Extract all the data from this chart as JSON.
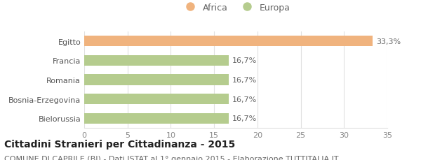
{
  "categories": [
    "Bielorussia",
    "Bosnia-Erzegovina",
    "Romania",
    "Francia",
    "Egitto"
  ],
  "values": [
    16.7,
    16.7,
    16.7,
    16.7,
    33.3
  ],
  "bar_colors": [
    "#b5cc8e",
    "#b5cc8e",
    "#b5cc8e",
    "#b5cc8e",
    "#f0b37e"
  ],
  "bar_labels": [
    "16,7%",
    "16,7%",
    "16,7%",
    "16,7%",
    "33,3%"
  ],
  "xlim": [
    0,
    35
  ],
  "xticks": [
    0,
    5,
    10,
    15,
    20,
    25,
    30,
    35
  ],
  "legend_entries": [
    {
      "label": "Africa",
      "color": "#f0b37e"
    },
    {
      "label": "Europa",
      "color": "#b5cc8e"
    }
  ],
  "title": "Cittadini Stranieri per Cittadinanza - 2015",
  "subtitle": "COMUNE DI CAPRILE (BI) - Dati ISTAT al 1° gennaio 2015 - Elaborazione TUTTITALIA.IT",
  "background_color": "#ffffff",
  "grid_color": "#e0e0e0",
  "bar_height": 0.55,
  "label_fontsize": 8,
  "tick_fontsize": 8,
  "title_fontsize": 10,
  "subtitle_fontsize": 8
}
